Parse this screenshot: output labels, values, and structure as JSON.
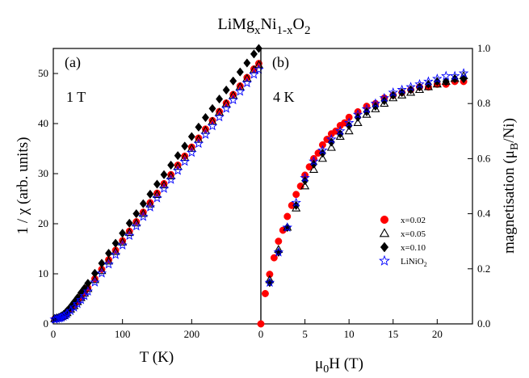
{
  "figure": {
    "title_parts": [
      "LiMg",
      "x",
      "Ni",
      "1-x",
      "O",
      "2"
    ]
  },
  "chart_data": [
    {
      "type": "scatter",
      "panel_label": "(a)",
      "annotation": "1 T",
      "xlabel": "T (K)",
      "ylabel": "1 / χ  (arb. units)",
      "xlim": [
        0,
        300
      ],
      "ylim": [
        0,
        55
      ],
      "xticks": [
        0,
        100,
        200
      ],
      "yticks": [
        0,
        10,
        20,
        30,
        40,
        50
      ],
      "grid": false,
      "series": [
        {
          "key": "x002",
          "color": "#ff0000",
          "marker": "circle",
          "x": [
            2,
            5,
            8,
            10,
            12,
            15,
            18,
            20,
            25,
            30,
            35,
            40,
            45,
            50,
            60,
            70,
            80,
            90,
            100,
            110,
            120,
            130,
            140,
            150,
            160,
            170,
            180,
            190,
            200,
            210,
            220,
            230,
            240,
            250,
            260,
            270,
            280,
            290,
            297
          ],
          "y": [
            1.0,
            1.1,
            1.2,
            1.3,
            1.4,
            1.7,
            2.0,
            2.3,
            3.0,
            3.8,
            4.6,
            5.4,
            6.3,
            7.2,
            9.0,
            10.9,
            12.8,
            14.7,
            16.6,
            18.5,
            20.4,
            22.3,
            24.2,
            26.1,
            28.0,
            29.8,
            31.7,
            33.5,
            35.3,
            37.1,
            38.9,
            40.6,
            42.4,
            44.1,
            45.8,
            47.5,
            49.2,
            50.9,
            52.0
          ]
        },
        {
          "key": "x005",
          "color": "#000000",
          "marker": "triangle-open",
          "x": [
            2,
            5,
            8,
            10,
            12,
            15,
            18,
            20,
            25,
            30,
            35,
            40,
            45,
            50,
            60,
            70,
            80,
            90,
            100,
            110,
            120,
            130,
            140,
            150,
            160,
            170,
            180,
            190,
            200,
            210,
            220,
            230,
            240,
            250,
            260,
            270,
            280,
            290,
            297
          ],
          "y": [
            1.0,
            1.1,
            1.2,
            1.3,
            1.4,
            1.6,
            1.9,
            2.2,
            2.9,
            3.6,
            4.4,
            5.2,
            6.1,
            7.0,
            8.8,
            10.6,
            12.5,
            14.4,
            16.3,
            18.2,
            20.1,
            22.0,
            23.9,
            25.8,
            27.7,
            29.5,
            31.4,
            33.2,
            35.0,
            36.8,
            38.6,
            40.4,
            42.2,
            43.9,
            45.6,
            47.3,
            49.0,
            50.7,
            51.7
          ]
        },
        {
          "key": "x010",
          "color": "#000000",
          "marker": "diamond",
          "x": [
            2,
            5,
            8,
            10,
            12,
            15,
            18,
            20,
            25,
            30,
            35,
            40,
            45,
            50,
            60,
            70,
            80,
            90,
            100,
            110,
            120,
            130,
            140,
            150,
            160,
            170,
            180,
            190,
            200,
            210,
            220,
            230,
            240,
            250,
            260,
            270,
            280,
            290,
            297
          ],
          "y": [
            1.1,
            1.2,
            1.3,
            1.4,
            1.6,
            1.9,
            2.3,
            2.6,
            3.4,
            4.3,
            5.2,
            6.2,
            7.1,
            8.1,
            10.1,
            12.1,
            14.1,
            16.1,
            18.1,
            20.1,
            22.0,
            24.0,
            25.9,
            27.9,
            29.8,
            31.7,
            33.6,
            35.5,
            37.4,
            39.3,
            41.2,
            43.0,
            44.9,
            46.7,
            48.5,
            50.3,
            52.1,
            53.9,
            55.0
          ]
        },
        {
          "key": "lnio",
          "color": "#0000ff",
          "marker": "star-open",
          "x": [
            2,
            5,
            8,
            10,
            12,
            15,
            18,
            20,
            25,
            30,
            35,
            40,
            45,
            50,
            60,
            70,
            80,
            90,
            100,
            110,
            120,
            130,
            140,
            150,
            160,
            170,
            180,
            190,
            200,
            210,
            220,
            230,
            240,
            250,
            260,
            270,
            280,
            290,
            297
          ],
          "y": [
            0.9,
            1.0,
            1.1,
            1.2,
            1.3,
            1.5,
            1.7,
            2.0,
            2.6,
            3.3,
            4.0,
            4.8,
            5.6,
            6.5,
            8.3,
            10.1,
            11.9,
            13.8,
            15.7,
            17.6,
            19.5,
            21.4,
            23.3,
            25.1,
            27.0,
            28.8,
            30.6,
            32.4,
            34.2,
            36.0,
            37.8,
            39.5,
            41.3,
            43.0,
            44.7,
            46.4,
            48.1,
            49.8,
            50.8
          ]
        }
      ]
    },
    {
      "type": "scatter",
      "panel_label": "(b)",
      "annotation": "4 K",
      "xlabel_parts": [
        "μ",
        "0",
        "H (T)"
      ],
      "ylabel_parts": [
        "magnetisation (μ",
        "B",
        "/Ni)"
      ],
      "xlim": [
        0,
        24
      ],
      "ylim": [
        0,
        1.0
      ],
      "xticks": [
        0,
        5,
        10,
        15,
        20
      ],
      "yticks": [
        0.0,
        0.2,
        0.4,
        0.6,
        0.8,
        1.0
      ],
      "grid": false,
      "legend": {
        "placement": "right",
        "entries": [
          {
            "key": "x002",
            "label": "x=0.02"
          },
          {
            "key": "x005",
            "label": "x=0.05"
          },
          {
            "key": "x010",
            "label": "x=0.10"
          },
          {
            "key": "lnio",
            "label_parts": [
              "LiNiO",
              "2"
            ]
          }
        ]
      },
      "series": [
        {
          "key": "x002",
          "color": "#ff0000",
          "marker": "circle",
          "x": [
            0,
            0.5,
            1,
            1.5,
            2,
            2.5,
            3,
            3.5,
            4,
            4.5,
            5,
            5.5,
            6,
            6.5,
            7,
            7.5,
            8,
            8.5,
            9,
            9.5,
            10,
            11,
            12,
            13,
            14,
            15,
            16,
            17,
            18,
            19,
            20,
            21,
            22,
            23
          ],
          "y": [
            0.0,
            0.11,
            0.18,
            0.24,
            0.3,
            0.34,
            0.39,
            0.43,
            0.47,
            0.5,
            0.54,
            0.57,
            0.6,
            0.62,
            0.65,
            0.67,
            0.69,
            0.7,
            0.72,
            0.73,
            0.75,
            0.77,
            0.79,
            0.8,
            0.82,
            0.83,
            0.84,
            0.85,
            0.86,
            0.86,
            0.87,
            0.87,
            0.88,
            0.88
          ]
        },
        {
          "key": "x005",
          "color": "#000000",
          "marker": "triangle-open",
          "x": [
            1,
            2,
            3,
            4,
            5,
            6,
            7,
            8,
            9,
            10,
            11,
            12,
            13,
            14,
            15,
            16,
            17,
            18,
            19,
            20,
            21,
            22,
            23
          ],
          "y": [
            0.16,
            0.27,
            0.35,
            0.42,
            0.5,
            0.56,
            0.6,
            0.64,
            0.68,
            0.7,
            0.73,
            0.76,
            0.78,
            0.8,
            0.82,
            0.83,
            0.84,
            0.85,
            0.86,
            0.87,
            0.88,
            0.89,
            0.9
          ]
        },
        {
          "key": "x010",
          "color": "#000000",
          "marker": "diamond",
          "x": [
            1,
            2,
            3,
            4,
            5,
            6,
            7,
            8,
            9,
            10,
            11,
            12,
            13,
            14,
            15,
            16,
            17,
            18,
            19,
            20,
            21,
            22,
            23
          ],
          "y": [
            0.15,
            0.26,
            0.35,
            0.43,
            0.52,
            0.58,
            0.62,
            0.66,
            0.69,
            0.72,
            0.75,
            0.77,
            0.79,
            0.81,
            0.83,
            0.84,
            0.85,
            0.86,
            0.87,
            0.88,
            0.88,
            0.89,
            0.89
          ]
        },
        {
          "key": "lnio",
          "color": "#0000ff",
          "marker": "star-open",
          "x": [
            1,
            2,
            3,
            4,
            5,
            6,
            7,
            8,
            9,
            10,
            11,
            12,
            13,
            14,
            15,
            16,
            17,
            18,
            19,
            20,
            21,
            22,
            23
          ],
          "y": [
            0.15,
            0.26,
            0.35,
            0.44,
            0.53,
            0.59,
            0.63,
            0.67,
            0.7,
            0.73,
            0.76,
            0.78,
            0.8,
            0.82,
            0.84,
            0.85,
            0.86,
            0.87,
            0.88,
            0.89,
            0.9,
            0.9,
            0.91
          ]
        }
      ]
    }
  ]
}
